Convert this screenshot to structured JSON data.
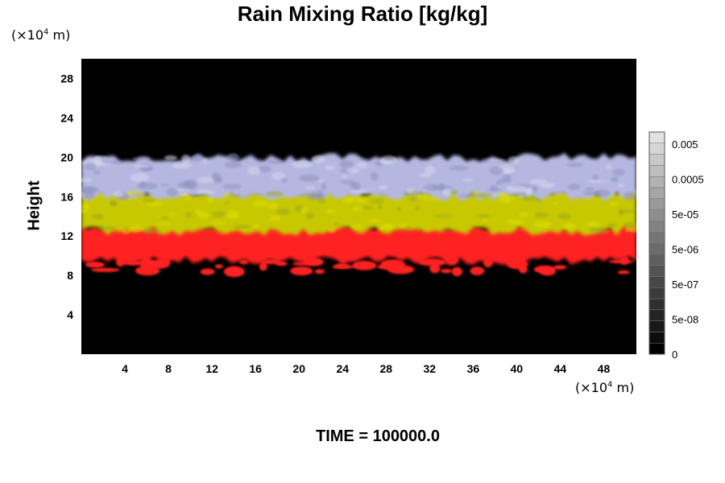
{
  "title": "Rain Mixing Ratio [kg/kg]",
  "ylabel": "Height",
  "y_unit": {
    "prefix": "(×10",
    "exp": "4",
    "suffix": " m)"
  },
  "x_unit": {
    "prefix": "(×10",
    "exp": "4",
    "suffix": " m)"
  },
  "time_label": "TIME = 100000.0",
  "chart_data": {
    "type": "heatmap",
    "title": "Rain Mixing Ratio [kg/kg]",
    "ylabel": "Height",
    "xlim": [
      0,
      51
    ],
    "ylim": [
      0,
      30
    ],
    "x_ticks": [
      "4",
      "8",
      "12",
      "16",
      "20",
      "24",
      "28",
      "32",
      "36",
      "40",
      "44",
      "48"
    ],
    "y_ticks": [
      "4",
      "8",
      "12",
      "16",
      "20",
      "24",
      "28"
    ],
    "colorbar_labels": [
      "0.005",
      "0.0005",
      "5e-05",
      "5e-06",
      "5e-07",
      "5e-08",
      "0"
    ],
    "layers": [
      {
        "range": [
          9.5,
          13
        ],
        "color": "#ff2020"
      },
      {
        "range": [
          12.5,
          16.5
        ],
        "color": "#c8c800"
      },
      {
        "range": [
          16,
          20
        ],
        "color": "#b4b8e0"
      }
    ],
    "background_color": "#000000"
  }
}
